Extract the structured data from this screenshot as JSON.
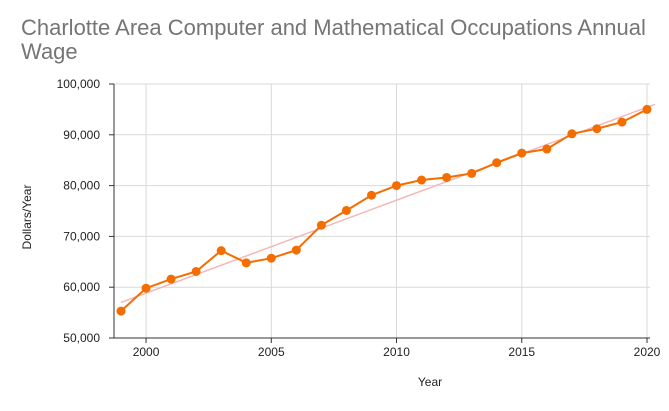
{
  "chart_data": {
    "type": "line",
    "title": "Charlotte Area Computer and Mathematical Occupations Annual Wage",
    "xlabel": "Year",
    "ylabel": "Dollars/Year",
    "xlim": [
      1999,
      2020
    ],
    "ylim": [
      50000,
      100000
    ],
    "x_ticks": [
      2000,
      2005,
      2010,
      2015,
      2020
    ],
    "x_tick_labels": [
      "2000",
      "2005",
      "2010",
      "2015",
      "2020"
    ],
    "y_ticks": [
      50000,
      60000,
      70000,
      80000,
      90000,
      100000
    ],
    "y_tick_labels": [
      "50,000",
      "60,000",
      "70,000",
      "80,000",
      "90,000",
      "100,000"
    ],
    "grid": true,
    "series": [
      {
        "color": "#f46d00",
        "x": [
          1999,
          2000,
          2001,
          2002,
          2003,
          2004,
          2005,
          2006,
          2007,
          2008,
          2009,
          2010,
          2011,
          2012,
          2013,
          2014,
          2015,
          2016,
          2017,
          2018,
          2019,
          2020
        ],
        "values": [
          55300,
          59800,
          61600,
          63100,
          67200,
          64800,
          65700,
          67300,
          72200,
          75100,
          78100,
          80000,
          81100,
          81600,
          82400,
          84500,
          86400,
          87200,
          90200,
          91200,
          92500,
          95000
        ]
      }
    ],
    "trendline": {
      "color": "#f4b7b7",
      "x": [
        1999,
        2020
      ],
      "values": [
        57000,
        95800
      ]
    }
  }
}
